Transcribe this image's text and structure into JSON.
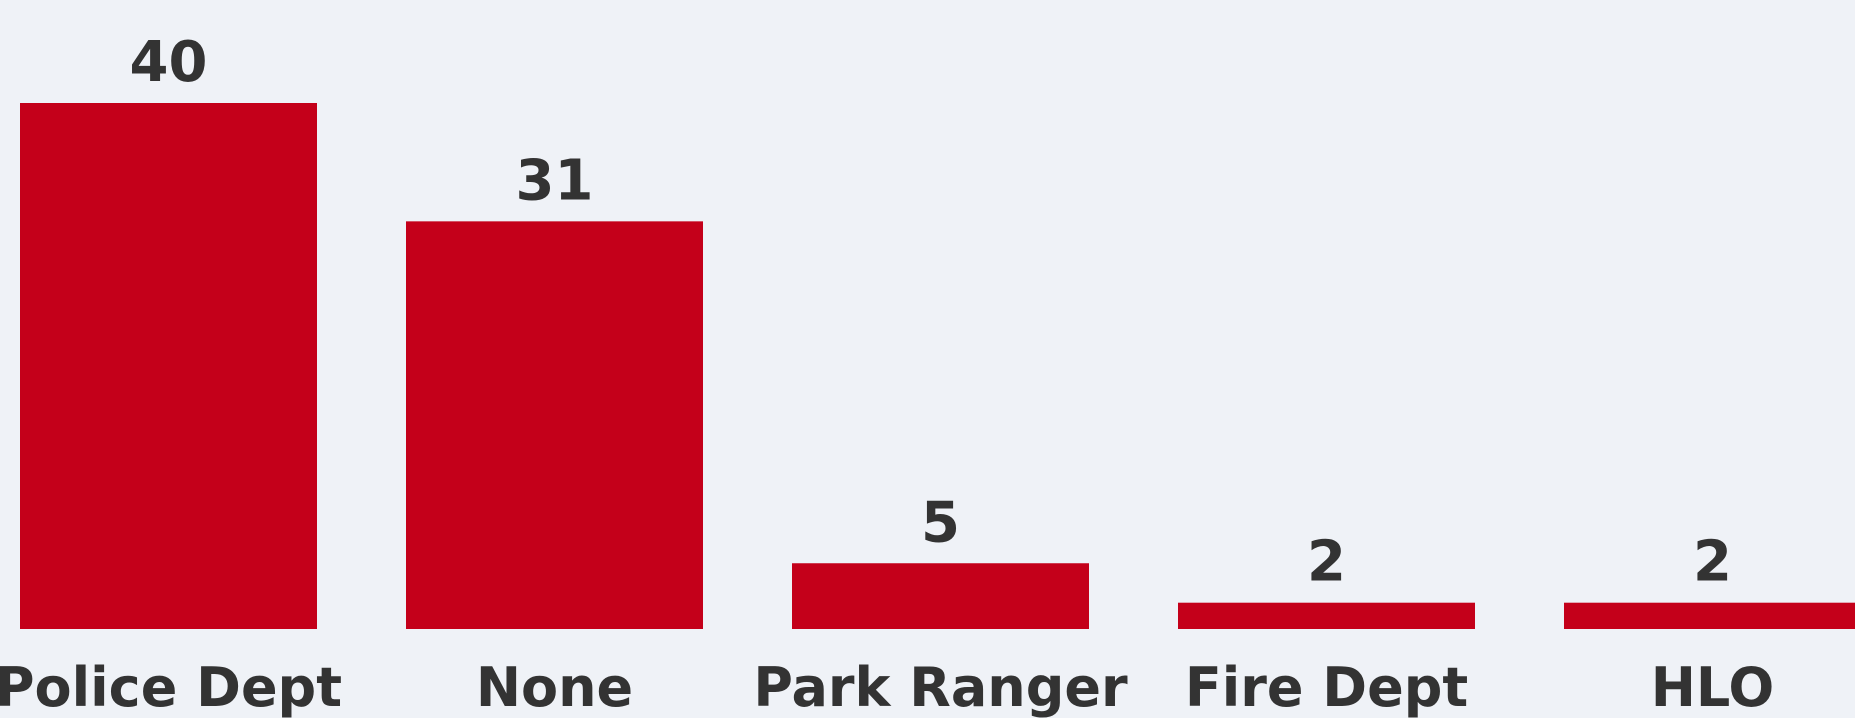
{
  "chart_data": {
    "type": "bar",
    "categories": [
      "Police Dept",
      "None",
      "Park Ranger",
      "Fire Dept",
      "HLO"
    ],
    "values": [
      40,
      31,
      5,
      2,
      2
    ],
    "color": "#c4001a"
  }
}
